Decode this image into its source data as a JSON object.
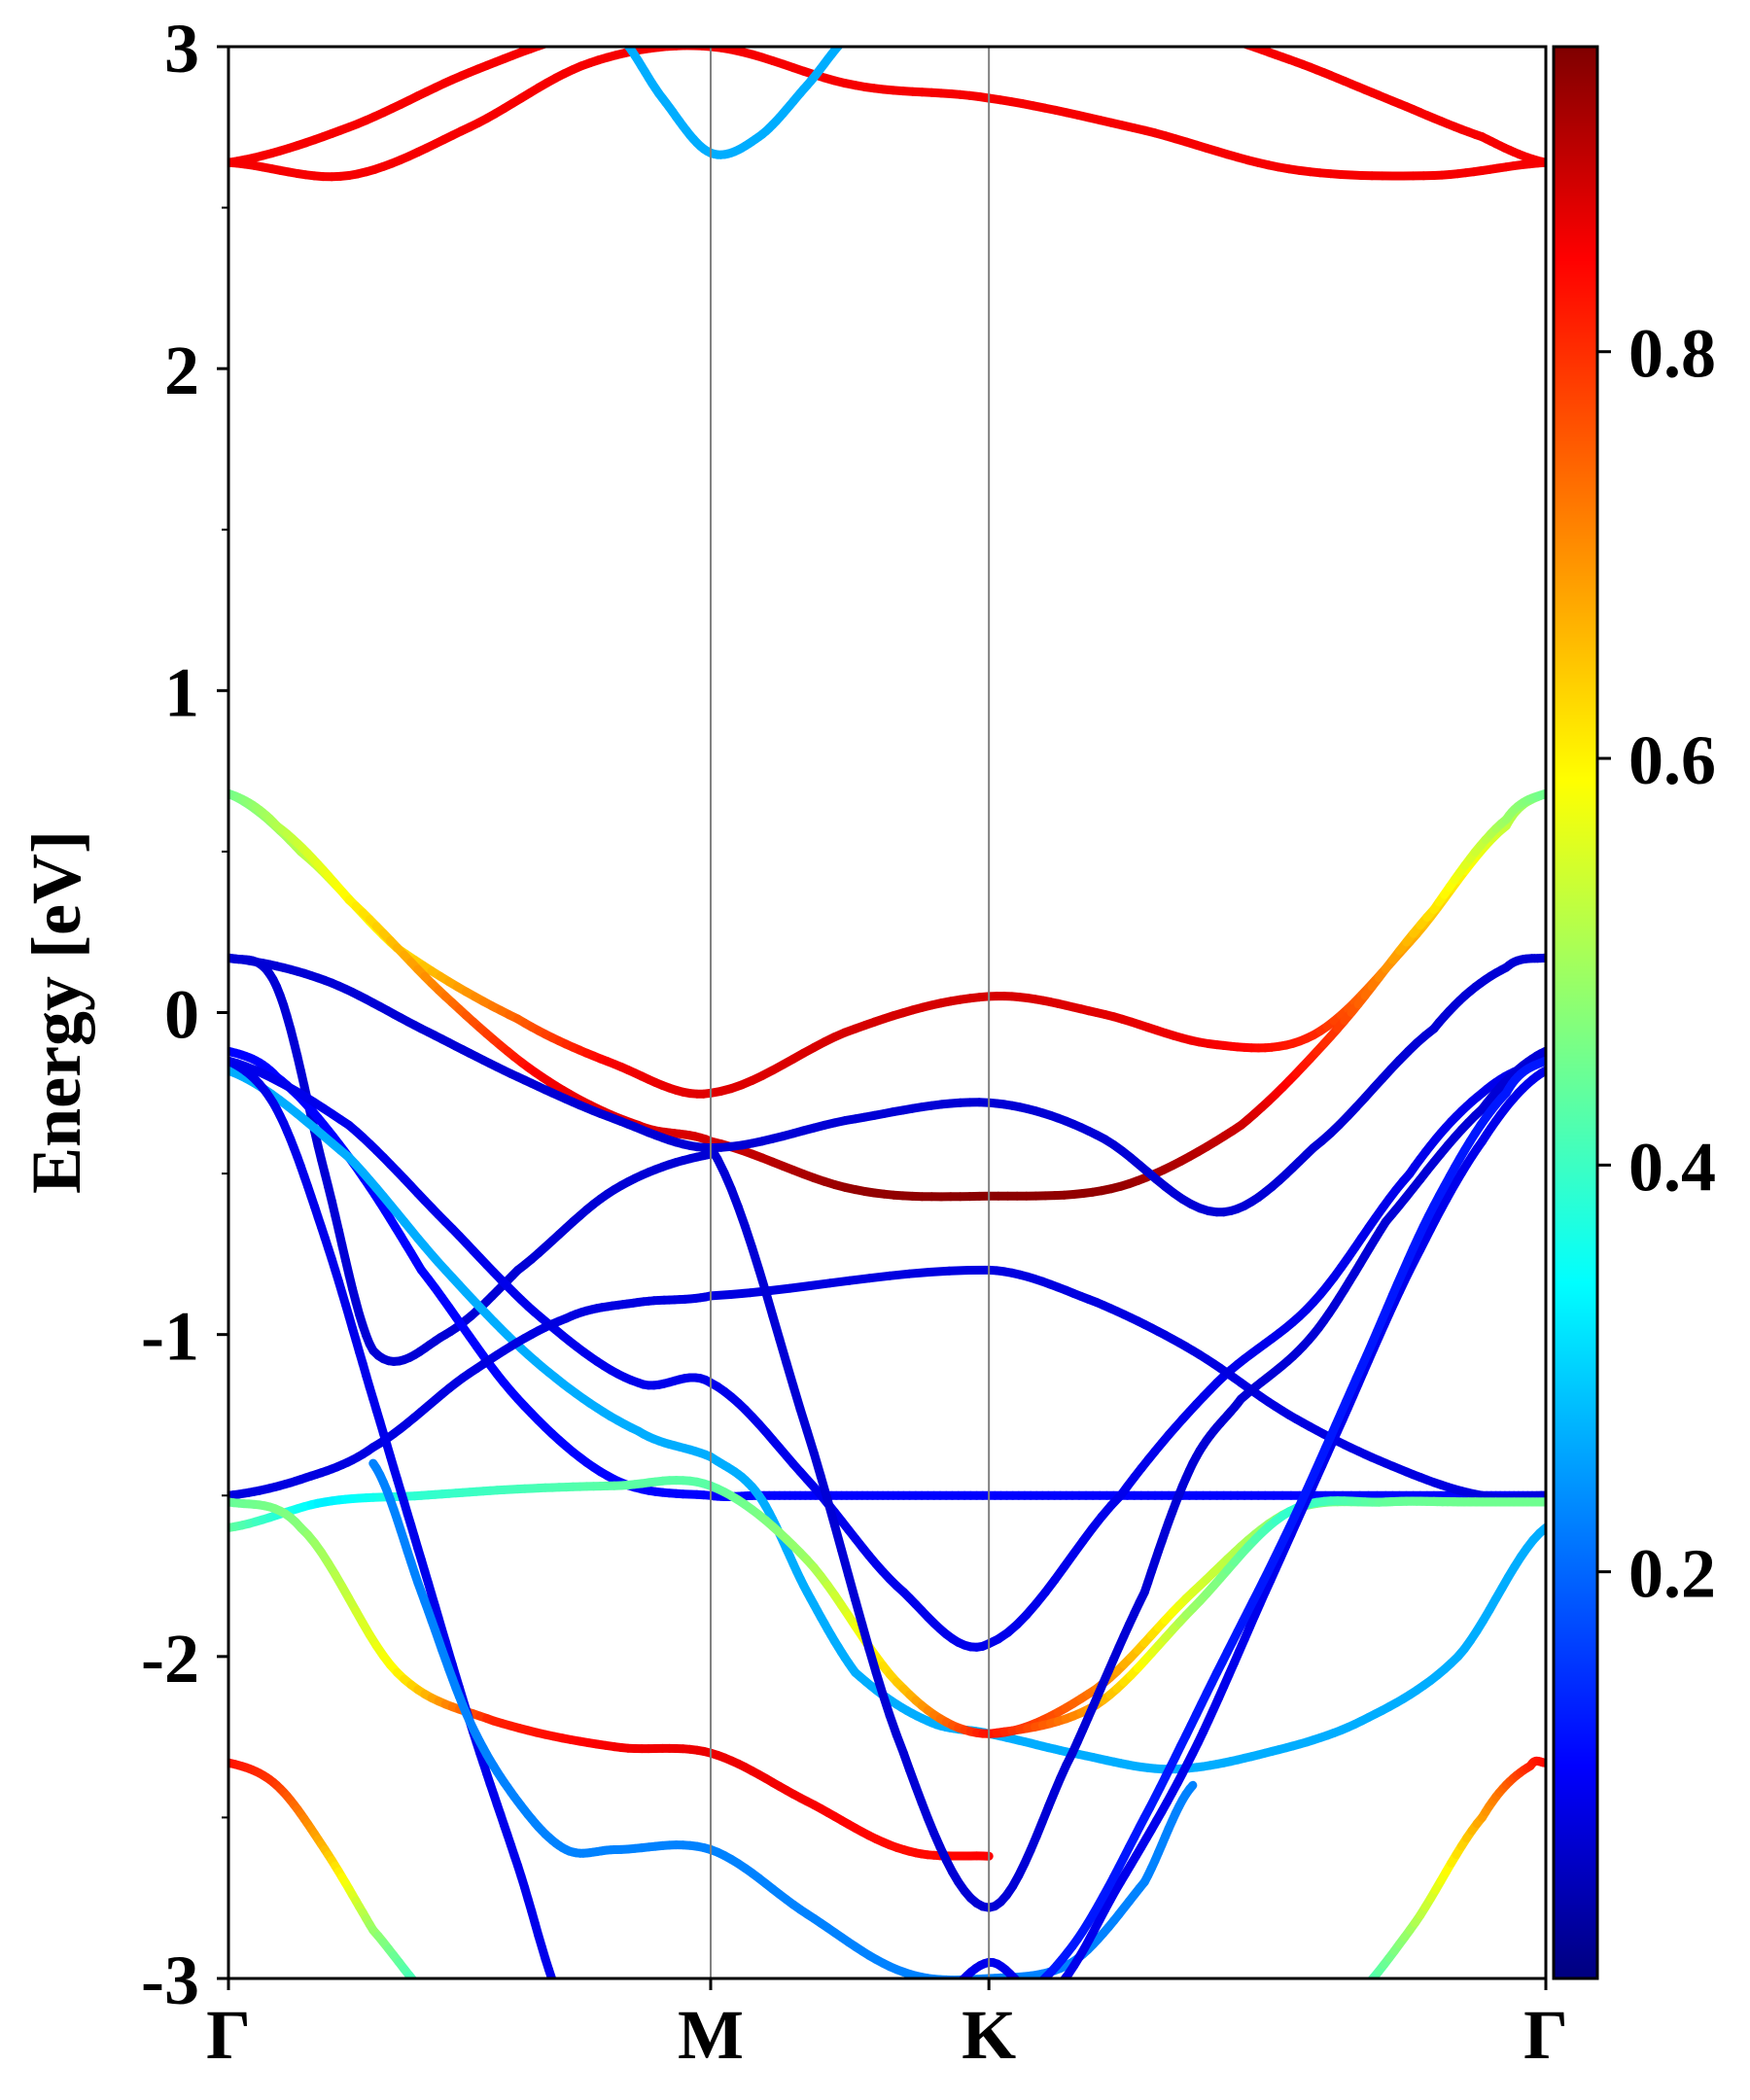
{
  "chart_data": {
    "type": "line",
    "title": "",
    "xlabel": "",
    "ylabel": "Energy [eV]",
    "ylim": [
      -3,
      3
    ],
    "grid": false,
    "k_path": {
      "labels": [
        "Γ",
        "M",
        "K",
        "Γ"
      ],
      "positions": [
        0,
        1,
        1.577,
        2.732
      ]
    },
    "y_ticks": [
      "-3",
      "-2",
      "-1",
      "0",
      "1",
      "2",
      "3"
    ],
    "colorbar": {
      "colormap": "jet",
      "range": [
        0,
        0.95
      ],
      "tick_values": [
        0.2,
        0.4,
        0.6,
        0.8
      ],
      "tick_labels": [
        "0.2",
        "0.4",
        "0.6",
        "0.8"
      ]
    },
    "bands": [
      {
        "k": [
          0,
          0.25,
          0.5,
          0.75,
          1.0,
          1.3,
          1.577,
          1.9,
          2.2,
          2.5,
          2.732
        ],
        "energy": [
          2.64,
          2.6,
          2.75,
          2.95,
          3.0,
          2.88,
          2.84,
          2.74,
          2.62,
          2.6,
          2.64
        ],
        "weight": 0.84
      },
      {
        "k": [
          0,
          0.25,
          0.5,
          0.75,
          0.9
        ],
        "energy": [
          2.64,
          2.75,
          2.92,
          3.05,
          3.1
        ],
        "weight": 0.84
      },
      {
        "k": [
          0.8,
          0.9,
          1.0,
          1.1,
          1.2,
          1.3
        ],
        "energy": [
          3.05,
          2.84,
          2.67,
          2.72,
          2.88,
          3.05
        ],
        "weight": 0.28
      },
      {
        "k": [
          2.0,
          2.2,
          2.4,
          2.6,
          2.732
        ],
        "energy": [
          3.05,
          2.96,
          2.84,
          2.72,
          2.64
        ],
        "weight": 0.84
      },
      {
        "k": [
          0,
          0.15,
          0.35,
          0.6,
          0.8,
          1.0,
          1.3,
          1.577,
          1.8,
          2.05,
          2.25,
          2.45,
          2.65,
          2.732
        ],
        "energy": [
          0.68,
          0.5,
          0.2,
          -0.02,
          -0.16,
          -0.25,
          -0.05,
          0.05,
          0.0,
          -0.1,
          -0.07,
          0.22,
          0.58,
          0.68
        ],
        "weight": [
          0.46,
          0.52,
          0.62,
          0.74,
          0.84,
          0.86,
          0.87,
          0.87,
          0.86,
          0.84,
          0.8,
          0.68,
          0.54,
          0.46
        ]
      },
      {
        "k": [
          0,
          0.1,
          0.25,
          0.45,
          0.65,
          0.85,
          1.0,
          1.3,
          1.577,
          1.85,
          2.1,
          2.3,
          2.5,
          2.65,
          2.732
        ],
        "energy": [
          0.68,
          0.58,
          0.35,
          0.05,
          -0.2,
          -0.35,
          -0.4,
          -0.55,
          -0.57,
          -0.54,
          -0.35,
          -0.05,
          0.32,
          0.6,
          0.68
        ],
        "weight": [
          0.46,
          0.52,
          0.6,
          0.72,
          0.84,
          0.86,
          0.87,
          0.93,
          0.94,
          0.93,
          0.88,
          0.78,
          0.62,
          0.5,
          0.46
        ]
      },
      {
        "k": [
          0,
          0.2,
          0.4,
          0.6,
          0.8,
          1.0,
          1.3,
          1.577,
          1.8,
          2.05,
          2.25,
          2.5,
          2.65,
          2.732
        ],
        "energy": [
          0.17,
          0.1,
          -0.05,
          -0.2,
          -0.33,
          -0.42,
          -0.33,
          -0.28,
          -0.38,
          -0.62,
          -0.42,
          -0.05,
          0.14,
          0.17
        ],
        "weight": 0.08
      },
      {
        "k": [
          0,
          0.1,
          0.2,
          0.3,
          0.45,
          0.6,
          0.8,
          1.0
        ],
        "energy": [
          0.17,
          0.08,
          -0.5,
          -1.05,
          -1.0,
          -0.8,
          -0.55,
          -0.44
        ],
        "weight": 0.08
      },
      {
        "k": [
          0,
          0.1,
          0.25,
          0.4,
          0.6,
          0.8,
          1.0,
          1.1,
          1.25,
          1.4,
          1.577,
          1.75,
          1.95,
          2.15,
          2.4,
          2.6,
          2.732
        ],
        "energy": [
          -0.12,
          -0.2,
          -0.45,
          -0.8,
          -1.2,
          -1.45,
          -1.5,
          -1.5,
          -1.5,
          -1.5,
          -1.5,
          -1.5,
          -1.5,
          -1.5,
          -1.5,
          -1.5,
          -1.5
        ],
        "weight": 0.12
      },
      {
        "k": [
          0,
          0.25,
          0.45,
          0.65,
          0.85,
          1.0,
          1.2,
          1.4,
          1.577,
          1.85,
          2.05,
          2.25,
          2.45,
          2.6,
          2.732
        ],
        "energy": [
          -0.15,
          -0.35,
          -0.65,
          -0.95,
          -1.15,
          -1.15,
          -1.45,
          -1.8,
          -1.96,
          -1.5,
          -1.15,
          -0.9,
          -0.5,
          -0.25,
          -0.15
        ],
        "weight": 0.1
      },
      {
        "k": [
          0,
          0.25,
          0.45,
          0.65,
          0.85,
          1.0,
          1.1,
          1.2,
          1.3,
          1.45,
          1.577,
          1.75,
          1.95,
          2.15,
          2.35,
          2.55,
          2.732
        ],
        "energy": [
          -0.18,
          -0.45,
          -0.8,
          -1.1,
          -1.3,
          -1.38,
          -1.5,
          -1.8,
          -2.05,
          -2.2,
          -2.24,
          -2.3,
          -2.35,
          -2.3,
          -2.2,
          -2.0,
          -1.6
        ],
        "weight": 0.28
      },
      {
        "k": [
          0,
          0.15,
          0.3,
          0.5,
          0.7,
          0.85,
          1.0,
          1.577,
          1.8,
          2.0,
          2.2,
          2.4,
          2.6,
          2.732
        ],
        "energy": [
          -1.5,
          -1.45,
          -1.35,
          -1.12,
          -0.95,
          -0.9,
          -0.88,
          -0.8,
          -0.9,
          -1.05,
          -1.25,
          -1.4,
          -1.5,
          -1.5
        ],
        "weight": 0.09
      },
      {
        "k": [
          0,
          0.2,
          0.4,
          0.6,
          0.8,
          1.0,
          1.2,
          1.4,
          1.577,
          1.8,
          2.0,
          2.2,
          2.4,
          2.6,
          2.732
        ],
        "energy": [
          -1.6,
          -1.52,
          -1.5,
          -1.48,
          -1.47,
          -1.47,
          -1.7,
          -2.1,
          -2.24,
          -2.1,
          -1.8,
          -1.55,
          -1.52,
          -1.52,
          -1.52
        ],
        "weight": [
          0.45,
          0.34,
          0.4,
          0.42,
          0.44,
          0.44,
          0.5,
          0.65,
          0.82,
          0.72,
          0.56,
          0.48,
          0.45,
          0.46,
          0.45
        ]
      },
      {
        "k": [
          0,
          0.15,
          0.35,
          0.55,
          0.8,
          1.0,
          1.2,
          1.4,
          1.577
        ],
        "energy": [
          -1.52,
          -1.6,
          -2.05,
          -2.2,
          -2.28,
          -2.3,
          -2.45,
          -2.6,
          -2.62
        ],
        "weight": [
          0.45,
          0.48,
          0.6,
          0.8,
          0.84,
          0.85,
          0.84,
          0.82,
          0.83
        ]
      },
      {
        "k": [
          1.577,
          1.8,
          2.0,
          2.2,
          2.4,
          2.55,
          2.732
        ],
        "energy": [
          -2.24,
          -2.15,
          -1.85,
          -1.55,
          -1.52,
          -1.52,
          -1.52
        ],
        "weight": [
          0.82,
          0.68,
          0.5,
          0.4,
          0.45,
          0.46,
          0.46
        ]
      },
      {
        "k": [
          0,
          0.1,
          0.2,
          0.3,
          0.45
        ],
        "energy": [
          -2.33,
          -2.4,
          -2.6,
          -2.85,
          -3.1
        ],
        "weight": [
          0.82,
          0.78,
          0.66,
          0.5,
          0.36
        ]
      },
      {
        "k": [
          2.3,
          2.45,
          2.6,
          2.7,
          2.732
        ],
        "energy": [
          -3.1,
          -2.85,
          -2.5,
          -2.34,
          -2.33
        ],
        "weight": [
          0.36,
          0.5,
          0.68,
          0.8,
          0.82
        ]
      },
      {
        "k": [
          0,
          0.1,
          0.2,
          0.3,
          0.4,
          0.5,
          0.6,
          0.7
        ],
        "energy": [
          -0.15,
          -0.3,
          -0.7,
          -1.2,
          -1.7,
          -2.2,
          -2.65,
          -3.1
        ],
        "weight": 0.1
      },
      {
        "k": [
          0.3,
          0.4,
          0.5,
          0.6,
          0.7,
          0.8,
          1.0,
          1.2,
          1.4,
          1.577,
          1.75,
          1.9,
          2.0
        ],
        "energy": [
          -1.4,
          -1.8,
          -2.2,
          -2.45,
          -2.6,
          -2.6,
          -2.6,
          -2.8,
          -2.98,
          -3.0,
          -2.95,
          -2.7,
          -2.4
        ],
        "weight": 0.24
      },
      {
        "k": [
          1.0,
          1.2,
          1.4,
          1.577,
          1.75,
          1.9,
          2.0,
          2.1,
          2.25,
          2.4,
          2.6,
          2.732
        ],
        "energy": [
          -0.42,
          -1.3,
          -2.3,
          -2.78,
          -2.3,
          -1.8,
          -1.4,
          -1.2,
          -1.0,
          -0.65,
          -0.3,
          -0.12
        ],
        "weight": 0.08
      },
      {
        "k": [
          1.45,
          1.577,
          1.7,
          1.85,
          2.0,
          2.15,
          2.3,
          2.45,
          2.6,
          2.732
        ],
        "energy": [
          -3.1,
          -2.95,
          -3.05,
          -2.7,
          -2.3,
          -1.8,
          -1.3,
          -0.8,
          -0.4,
          -0.18
        ],
        "weight": 0.1
      },
      {
        "k": [
          1.6,
          1.75,
          1.9,
          2.05,
          2.2,
          2.35,
          2.5,
          2.65,
          2.732
        ],
        "energy": [
          -3.1,
          -2.9,
          -2.5,
          -2.05,
          -1.6,
          -1.1,
          -0.6,
          -0.25,
          -0.15
        ],
        "weight": 0.14
      }
    ]
  }
}
